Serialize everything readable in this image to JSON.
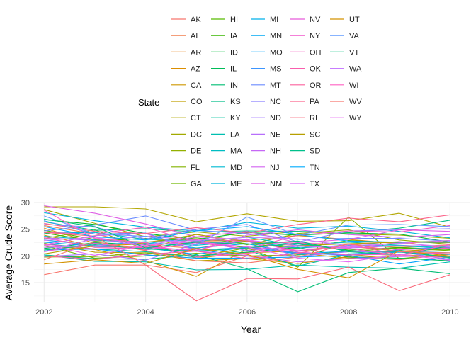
{
  "chart_data": {
    "type": "line",
    "title": "",
    "xlabel": "Year",
    "ylabel": "Average Crude Score",
    "xlim": [
      2001.8,
      2010.4
    ],
    "ylim": [
      11.3,
      30.0
    ],
    "x_ticks": [
      2002,
      2004,
      2006,
      2008,
      2010
    ],
    "y_ticks": [
      15,
      20,
      25,
      30
    ],
    "grid": true,
    "legend": {
      "title": "State",
      "placement": "top",
      "columns": 5
    },
    "x": [
      2002,
      2003,
      2004,
      2005,
      2006,
      2007,
      2008,
      2009,
      2010
    ],
    "series": [
      {
        "name": "AK",
        "color": "#F8766D",
        "values": [
          16.5,
          18.3,
          18.3,
          16.9,
          20.0,
          18.6,
          19.8,
          19.3,
          20.3
        ]
      },
      {
        "name": "AL",
        "color": "#F17E4F",
        "values": [
          25.7,
          24.1,
          22.1,
          21.4,
          23.1,
          20.9,
          22.2,
          21.6,
          22.1
        ]
      },
      {
        "name": "AR",
        "color": "#E7861B",
        "values": [
          25.2,
          22.4,
          21.3,
          22.8,
          22.9,
          23.8,
          23.1,
          22.3,
          22.9
        ]
      },
      {
        "name": "AZ",
        "color": "#DB8E00",
        "values": [
          23.9,
          21.8,
          22.3,
          19.6,
          20.6,
          20.9,
          21.8,
          20.9,
          21.3
        ]
      },
      {
        "name": "CA",
        "color": "#CE9700",
        "values": [
          21.9,
          21.2,
          19.1,
          16.2,
          21.3,
          20.5,
          19.6,
          20.2,
          19.9
        ]
      },
      {
        "name": "CO",
        "color": "#C09F00",
        "values": [
          22.4,
          20.7,
          20.6,
          19.1,
          19.5,
          18.6,
          19.9,
          20.8,
          21.6
        ]
      },
      {
        "name": "CT",
        "color": "#B2A600",
        "values": [
          29.2,
          29.2,
          28.8,
          26.4,
          27.9,
          26.5,
          26.6,
          28.0,
          25.4
        ]
      },
      {
        "name": "DC",
        "color": "#A2AA00",
        "values": [
          28.7,
          26.1,
          23.6,
          24.5,
          23.7,
          24.6,
          24.1,
          23.9,
          23.3
        ]
      },
      {
        "name": "DE",
        "color": "#93B000",
        "values": [
          23.3,
          24.9,
          21.2,
          24.1,
          22.1,
          24.2,
          24.9,
          23.0,
          22.2
        ]
      },
      {
        "name": "FL",
        "color": "#83B300",
        "values": [
          19.8,
          19.9,
          20.6,
          19.9,
          21.5,
          17.9,
          27.3,
          19.5,
          20.4
        ]
      },
      {
        "name": "GA",
        "color": "#6FB600",
        "values": [
          21.9,
          19.6,
          20.0,
          20.5,
          20.0,
          20.2,
          20.8,
          21.5,
          21.0
        ]
      },
      {
        "name": "HI",
        "color": "#58BA00",
        "values": [
          24.8,
          23.1,
          22.6,
          23.4,
          22.3,
          21.4,
          22.9,
          22.5,
          22.9
        ]
      },
      {
        "name": "IA",
        "color": "#39B600",
        "values": [
          24.3,
          22.8,
          23.3,
          22.9,
          21.5,
          22.3,
          21.1,
          21.6,
          21.2
        ]
      },
      {
        "name": "ID",
        "color": "#00BA38",
        "values": [
          26.8,
          25.9,
          24.2,
          23.1,
          24.4,
          23.9,
          24.3,
          24.1,
          22.6
        ]
      },
      {
        "name": "IL",
        "color": "#00BC59",
        "values": [
          21.4,
          22.5,
          22.1,
          20.0,
          20.7,
          21.6,
          19.8,
          19.6,
          19.1
        ]
      },
      {
        "name": "IN",
        "color": "#00BD74",
        "values": [
          20.2,
          19.5,
          19.4,
          20.2,
          17.6,
          13.3,
          16.9,
          17.7,
          16.7
        ]
      },
      {
        "name": "KS",
        "color": "#00BE89",
        "values": [
          26.4,
          24.8,
          25.1,
          24.5,
          24.7,
          24.6,
          24.4,
          25.2,
          26.7
        ]
      },
      {
        "name": "KY",
        "color": "#00C09E",
        "values": [
          22.3,
          21.3,
          20.8,
          19.8,
          21.1,
          18.1,
          20.3,
          21.1,
          19.6
        ]
      },
      {
        "name": "LA",
        "color": "#00BFB0",
        "values": [
          20.2,
          19.0,
          18.9,
          17.4,
          17.5,
          18.3,
          17.9,
          17.7,
          18.9
        ]
      },
      {
        "name": "MA",
        "color": "#00BDC2",
        "values": [
          24.3,
          24.4,
          23.1,
          22.8,
          23.5,
          22.0,
          22.6,
          22.0,
          21.6
        ]
      },
      {
        "name": "MD",
        "color": "#00BAD2",
        "values": [
          23.7,
          23.0,
          22.4,
          22.0,
          22.7,
          21.5,
          22.0,
          21.9,
          21.4
        ]
      },
      {
        "name": "ME",
        "color": "#00B5DE",
        "values": [
          28.1,
          26.6,
          25.4,
          24.7,
          26.3,
          25.2,
          25.6,
          24.6,
          23.4
        ]
      },
      {
        "name": "MI",
        "color": "#00B0EA",
        "values": [
          23.0,
          22.0,
          22.7,
          21.5,
          22.3,
          20.3,
          20.4,
          20.7,
          20.3
        ]
      },
      {
        "name": "MN",
        "color": "#00A9F3",
        "values": [
          22.6,
          21.8,
          21.5,
          20.3,
          21.7,
          20.4,
          20.9,
          20.9,
          20.6
        ]
      },
      {
        "name": "MO",
        "color": "#00A2FB",
        "values": [
          21.1,
          21.3,
          20.2,
          19.6,
          19.6,
          19.8,
          20.1,
          18.5,
          19.8
        ]
      },
      {
        "name": "MS",
        "color": "#3C95FF",
        "values": [
          26.6,
          24.1,
          24.3,
          21.1,
          21.6,
          20.6,
          20.1,
          21.2,
          21.7
        ]
      },
      {
        "name": "MT",
        "color": "#6B8CFF",
        "values": [
          24.7,
          25.8,
          27.5,
          24.8,
          24.2,
          23.1,
          23.3,
          23.3,
          22.8
        ]
      },
      {
        "name": "NC",
        "color": "#8A80FF",
        "values": [
          25.9,
          25.4,
          23.2,
          25.0,
          25.9,
          22.6,
          24.7,
          24.9,
          25.1
        ]
      },
      {
        "name": "ND",
        "color": "#A378FF",
        "values": [
          19.9,
          20.4,
          19.2,
          22.3,
          22.8,
          19.9,
          20.8,
          20.8,
          19.3
        ]
      },
      {
        "name": "NE",
        "color": "#B76FFB",
        "values": [
          23.4,
          22.9,
          23.7,
          23.0,
          21.0,
          21.8,
          21.5,
          21.9,
          21.9
        ]
      },
      {
        "name": "NH",
        "color": "#C668F6",
        "values": [
          20.8,
          23.3,
          21.8,
          20.9,
          20.1,
          18.9,
          19.5,
          19.9,
          20.0
        ]
      },
      {
        "name": "NJ",
        "color": "#D364F0",
        "values": [
          22.1,
          23.8,
          24.2,
          21.0,
          23.9,
          24.9,
          24.0,
          23.5,
          24.0
        ]
      },
      {
        "name": "NM",
        "color": "#DF5FE6",
        "values": [
          29.4,
          28.0,
          26.0,
          23.6,
          24.6,
          22.5,
          23.1,
          24.9,
          24.6
        ]
      },
      {
        "name": "NV",
        "color": "#E85ADB",
        "values": [
          20.8,
          22.4,
          21.1,
          22.5,
          21.7,
          21.0,
          21.8,
          21.2,
          21.5
        ]
      },
      {
        "name": "NY",
        "color": "#F057CC",
        "values": [
          22.2,
          21.3,
          21.6,
          21.1,
          23.1,
          20.7,
          20.2,
          20.3,
          20.6
        ]
      },
      {
        "name": "OH",
        "color": "#F558BE",
        "values": [
          24.4,
          24.1,
          25.4,
          22.5,
          21.3,
          23.9,
          24.7,
          24.5,
          25.7
        ]
      },
      {
        "name": "OK",
        "color": "#F95DAD",
        "values": [
          23.4,
          21.6,
          21.7,
          23.1,
          22.8,
          22.4,
          22.2,
          22.7,
          21.3
        ]
      },
      {
        "name": "OR",
        "color": "#FB619D",
        "values": [
          20.0,
          19.4,
          20.3,
          20.9,
          19.5,
          20.5,
          22.2,
          20.2,
          19.7
        ]
      },
      {
        "name": "PA",
        "color": "#FC668C",
        "values": [
          26.1,
          24.6,
          24.2,
          25.3,
          24.3,
          25.9,
          27.1,
          26.4,
          27.7
        ]
      },
      {
        "name": "RI",
        "color": "#F9697A",
        "values": [
          24.4,
          23.7,
          18.3,
          11.6,
          15.8,
          15.7,
          17.9,
          13.5,
          16.5
        ]
      },
      {
        "name": "SC",
        "color": "#B79F00",
        "values": [
          20.4,
          21.9,
          22.5,
          24.0,
          22.7,
          21.9,
          22.3,
          22.6,
          22.5
        ]
      },
      {
        "name": "SD",
        "color": "#00C08B",
        "values": [
          21.1,
          22.1,
          21.3,
          20.9,
          21.5,
          22.4,
          21.0,
          20.8,
          19.7
        ]
      },
      {
        "name": "TN",
        "color": "#00ABFD",
        "values": [
          25.5,
          23.6,
          23.0,
          24.7,
          25.5,
          24.0,
          22.8,
          22.6,
          22.6
        ]
      },
      {
        "name": "TX",
        "color": "#DC71FA",
        "values": [
          22.9,
          23.5,
          22.0,
          23.6,
          23.0,
          21.9,
          21.6,
          22.4,
          22.9
        ]
      },
      {
        "name": "UT",
        "color": "#D39200",
        "values": [
          18.5,
          19.3,
          18.6,
          21.4,
          20.3,
          17.5,
          15.9,
          21.0,
          20.0
        ]
      },
      {
        "name": "VA",
        "color": "#619CFF",
        "values": [
          27.5,
          24.1,
          23.7,
          22.1,
          27.3,
          23.9,
          25.8,
          25.9,
          25.5
        ]
      },
      {
        "name": "VT",
        "color": "#00BF7D",
        "values": [
          26.9,
          25.5,
          21.5,
          22.6,
          22.2,
          22.8,
          20.8,
          20.2,
          21.9
        ]
      },
      {
        "name": "WA",
        "color": "#C77CFF",
        "values": [
          21.6,
          21.9,
          22.6,
          22.9,
          23.5,
          23.2,
          21.9,
          22.4,
          21.7
        ]
      },
      {
        "name": "WI",
        "color": "#FF61C3",
        "values": [
          28.6,
          23.3,
          22.5,
          19.8,
          20.5,
          21.3,
          21.4,
          20.1,
          22.2
        ]
      },
      {
        "name": "WV",
        "color": "#F8766D",
        "values": [
          19.3,
          22.7,
          21.0,
          19.1,
          18.7,
          19.8,
          22.3,
          20.8,
          20.6
        ]
      },
      {
        "name": "WY",
        "color": "#E76BF3",
        "values": [
          22.1,
          20.1,
          22.0,
          22.7,
          21.7,
          19.6,
          18.9,
          20.3,
          19.2
        ]
      }
    ]
  }
}
